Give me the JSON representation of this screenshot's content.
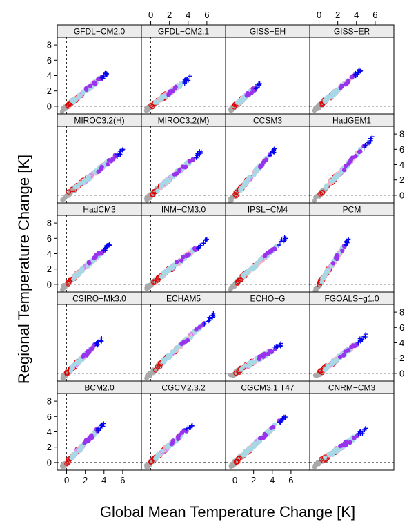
{
  "chart_data": {
    "type": "scatter",
    "xlabel": "Global Mean Temperature Change [K]",
    "ylabel": "Regional Temperature Change [K]",
    "xlim": [
      -1,
      8
    ],
    "ylim": [
      -1,
      9
    ],
    "x_ticks": [
      0,
      2,
      4,
      6
    ],
    "y_ticks": [
      0,
      2,
      4,
      6,
      8
    ],
    "reference_lines": {
      "x": 0,
      "y": 0,
      "style": "dashed"
    },
    "layout": {
      "columns": 4,
      "rows": 5
    },
    "colors": {
      "grey": "#a9a9a9",
      "red": "#e00000",
      "pink": "#f4b6c2",
      "violet": "#cc88ff",
      "purple": "#9933ee",
      "lightblue": "#a6d8e6",
      "blue": "#0000ee"
    },
    "panels": [
      {
        "name": "GFDL−CM2.0",
        "x_end": 4.5,
        "y_end": 4.5,
        "slope": 1.0
      },
      {
        "name": "GFDL−CM2.1",
        "x_end": 4.3,
        "y_end": 3.8,
        "slope": 0.9
      },
      {
        "name": "GISS−EH",
        "x_end": 2.7,
        "y_end": 3.0,
        "slope": 1.0
      },
      {
        "name": "GISS−ER",
        "x_end": 4.5,
        "y_end": 4.8,
        "slope": 1.05
      },
      {
        "name": "MIROC3.2(H)",
        "x_end": 6.1,
        "y_end": 5.9,
        "slope": 0.95
      },
      {
        "name": "MIROC3.2(M)",
        "x_end": 5.4,
        "y_end": 5.7,
        "slope": 1.05
      },
      {
        "name": "CCSM3",
        "x_end": 4.5,
        "y_end": 6.3,
        "slope": 1.35
      },
      {
        "name": "HadGEM1",
        "x_end": 5.7,
        "y_end": 7.5,
        "slope": 1.3
      },
      {
        "name": "HadCM3",
        "x_end": 4.7,
        "y_end": 5.3,
        "slope": 1.1
      },
      {
        "name": "INM−CM3.0",
        "x_end": 6.0,
        "y_end": 5.8,
        "slope": 0.95
      },
      {
        "name": "IPSL−CM4",
        "x_end": 5.6,
        "y_end": 6.3,
        "slope": 1.1
      },
      {
        "name": "PCM",
        "x_end": 3.4,
        "y_end": 6.3,
        "slope": 1.8
      },
      {
        "name": "CSIRO−Mk3.0",
        "x_end": 3.8,
        "y_end": 4.5,
        "slope": 1.15
      },
      {
        "name": "ECHAM5",
        "x_end": 6.8,
        "y_end": 7.8,
        "slope": 1.15
      },
      {
        "name": "ECHO−G",
        "x_end": 5.0,
        "y_end": 3.8,
        "slope": 0.75
      },
      {
        "name": "FGOALS−g1.0",
        "x_end": 5.0,
        "y_end": 4.9,
        "slope": 1.0
      },
      {
        "name": "BCM2.0",
        "x_end": 4.0,
        "y_end": 5.1,
        "slope": 1.25
      },
      {
        "name": "CGCM2.3.2",
        "x_end": 4.5,
        "y_end": 5.0,
        "slope": 1.1
      },
      {
        "name": "CGCM3.1 T47",
        "x_end": 5.5,
        "y_end": 6.1,
        "slope": 1.1
      },
      {
        "name": "CNRM−CM3",
        "x_end": 5.0,
        "y_end": 4.3,
        "slope": 0.85
      }
    ]
  }
}
